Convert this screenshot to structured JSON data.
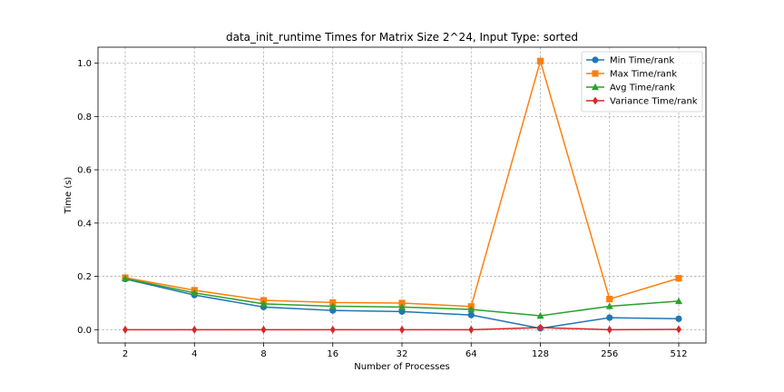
{
  "chart_data": {
    "type": "line",
    "title": "data_init_runtime Times for Matrix Size 2^24, Input Type: sorted",
    "xlabel": "Number of Processes",
    "ylabel": "Time (s)",
    "categories": [
      "2",
      "4",
      "8",
      "16",
      "32",
      "64",
      "128",
      "256",
      "512"
    ],
    "ylim": [
      -0.05,
      1.06
    ],
    "yticks": [
      "0.0",
      "0.2",
      "0.4",
      "0.6",
      "0.8",
      "1.0"
    ],
    "grid": true,
    "legend_position": "upper right",
    "series": [
      {
        "name": "Min Time/rank",
        "color": "#1f77b4",
        "marker": "circle",
        "values": [
          0.19,
          0.13,
          0.085,
          0.072,
          0.068,
          0.055,
          0.005,
          0.045,
          0.041
        ]
      },
      {
        "name": "Max Time/rank",
        "color": "#ff7f0e",
        "marker": "square",
        "values": [
          0.195,
          0.148,
          0.11,
          0.102,
          0.1,
          0.087,
          1.008,
          0.115,
          0.193
        ]
      },
      {
        "name": "Avg Time/rank",
        "color": "#2ca02c",
        "marker": "triangle",
        "values": [
          0.192,
          0.138,
          0.097,
          0.088,
          0.085,
          0.076,
          0.052,
          0.088,
          0.107
        ]
      },
      {
        "name": "Variance Time/rank",
        "color": "#d62728",
        "marker": "diamond",
        "values": [
          0.0,
          0.0,
          0.0,
          0.0,
          0.0,
          0.0,
          0.008,
          0.0,
          0.001
        ]
      }
    ]
  }
}
